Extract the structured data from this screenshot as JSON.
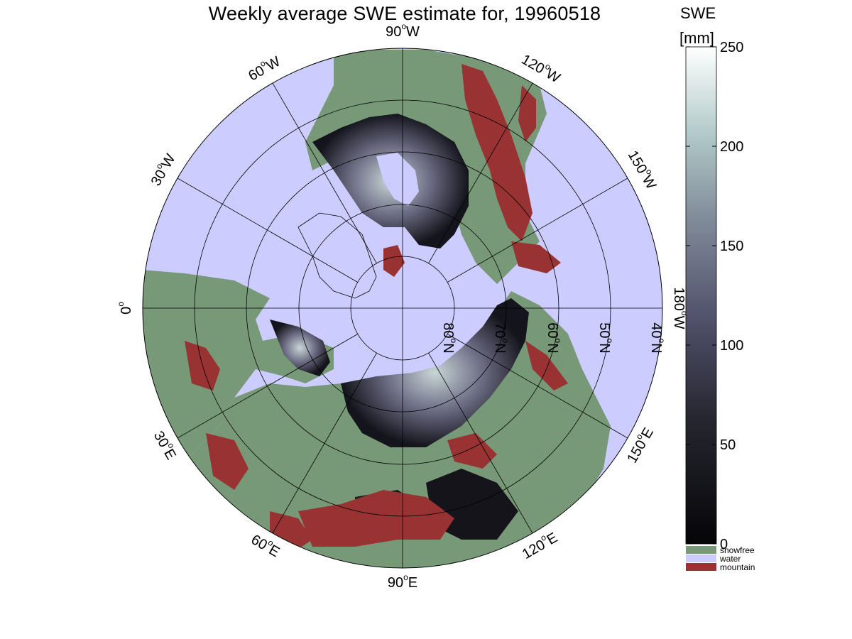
{
  "title": "Weekly average SWE estimate for, 19960518",
  "colorbar": {
    "label_line1": "SWE",
    "label_line2": "[mm]",
    "ticks": [
      "0",
      "50",
      "100",
      "150",
      "200",
      "250"
    ],
    "range": [
      0,
      250
    ],
    "categories": [
      {
        "label": "snowfree",
        "color": "#779977"
      },
      {
        "label": "water",
        "color": "#ccccff"
      },
      {
        "label": "mountain",
        "color": "#993333"
      }
    ]
  },
  "meridians": [
    {
      "text": "90",
      "suffix": "W"
    },
    {
      "text": "120",
      "suffix": "W"
    },
    {
      "text": "150",
      "suffix": "W"
    },
    {
      "text": "180",
      "suffix": "W"
    },
    {
      "text": "150",
      "suffix": "E"
    },
    {
      "text": "120",
      "suffix": "E"
    },
    {
      "text": "90",
      "suffix": "E"
    },
    {
      "text": "60",
      "suffix": "E"
    },
    {
      "text": "30",
      "suffix": "E"
    },
    {
      "text": "0",
      "suffix": ""
    },
    {
      "text": "30",
      "suffix": "W"
    },
    {
      "text": "60",
      "suffix": "W"
    }
  ],
  "parallels": [
    {
      "text": "80",
      "suffix": "N"
    },
    {
      "text": "70",
      "suffix": "N"
    },
    {
      "text": "60",
      "suffix": "N"
    },
    {
      "text": "50",
      "suffix": "N"
    },
    {
      "text": "40",
      "suffix": "N"
    }
  ],
  "colors": {
    "water": "#ccccff",
    "snowfree": "#779977",
    "mountain": "#993333",
    "swe_low": "#0a0a10",
    "swe_mid": "#4a4a66",
    "swe_high": "#ffffff"
  }
}
